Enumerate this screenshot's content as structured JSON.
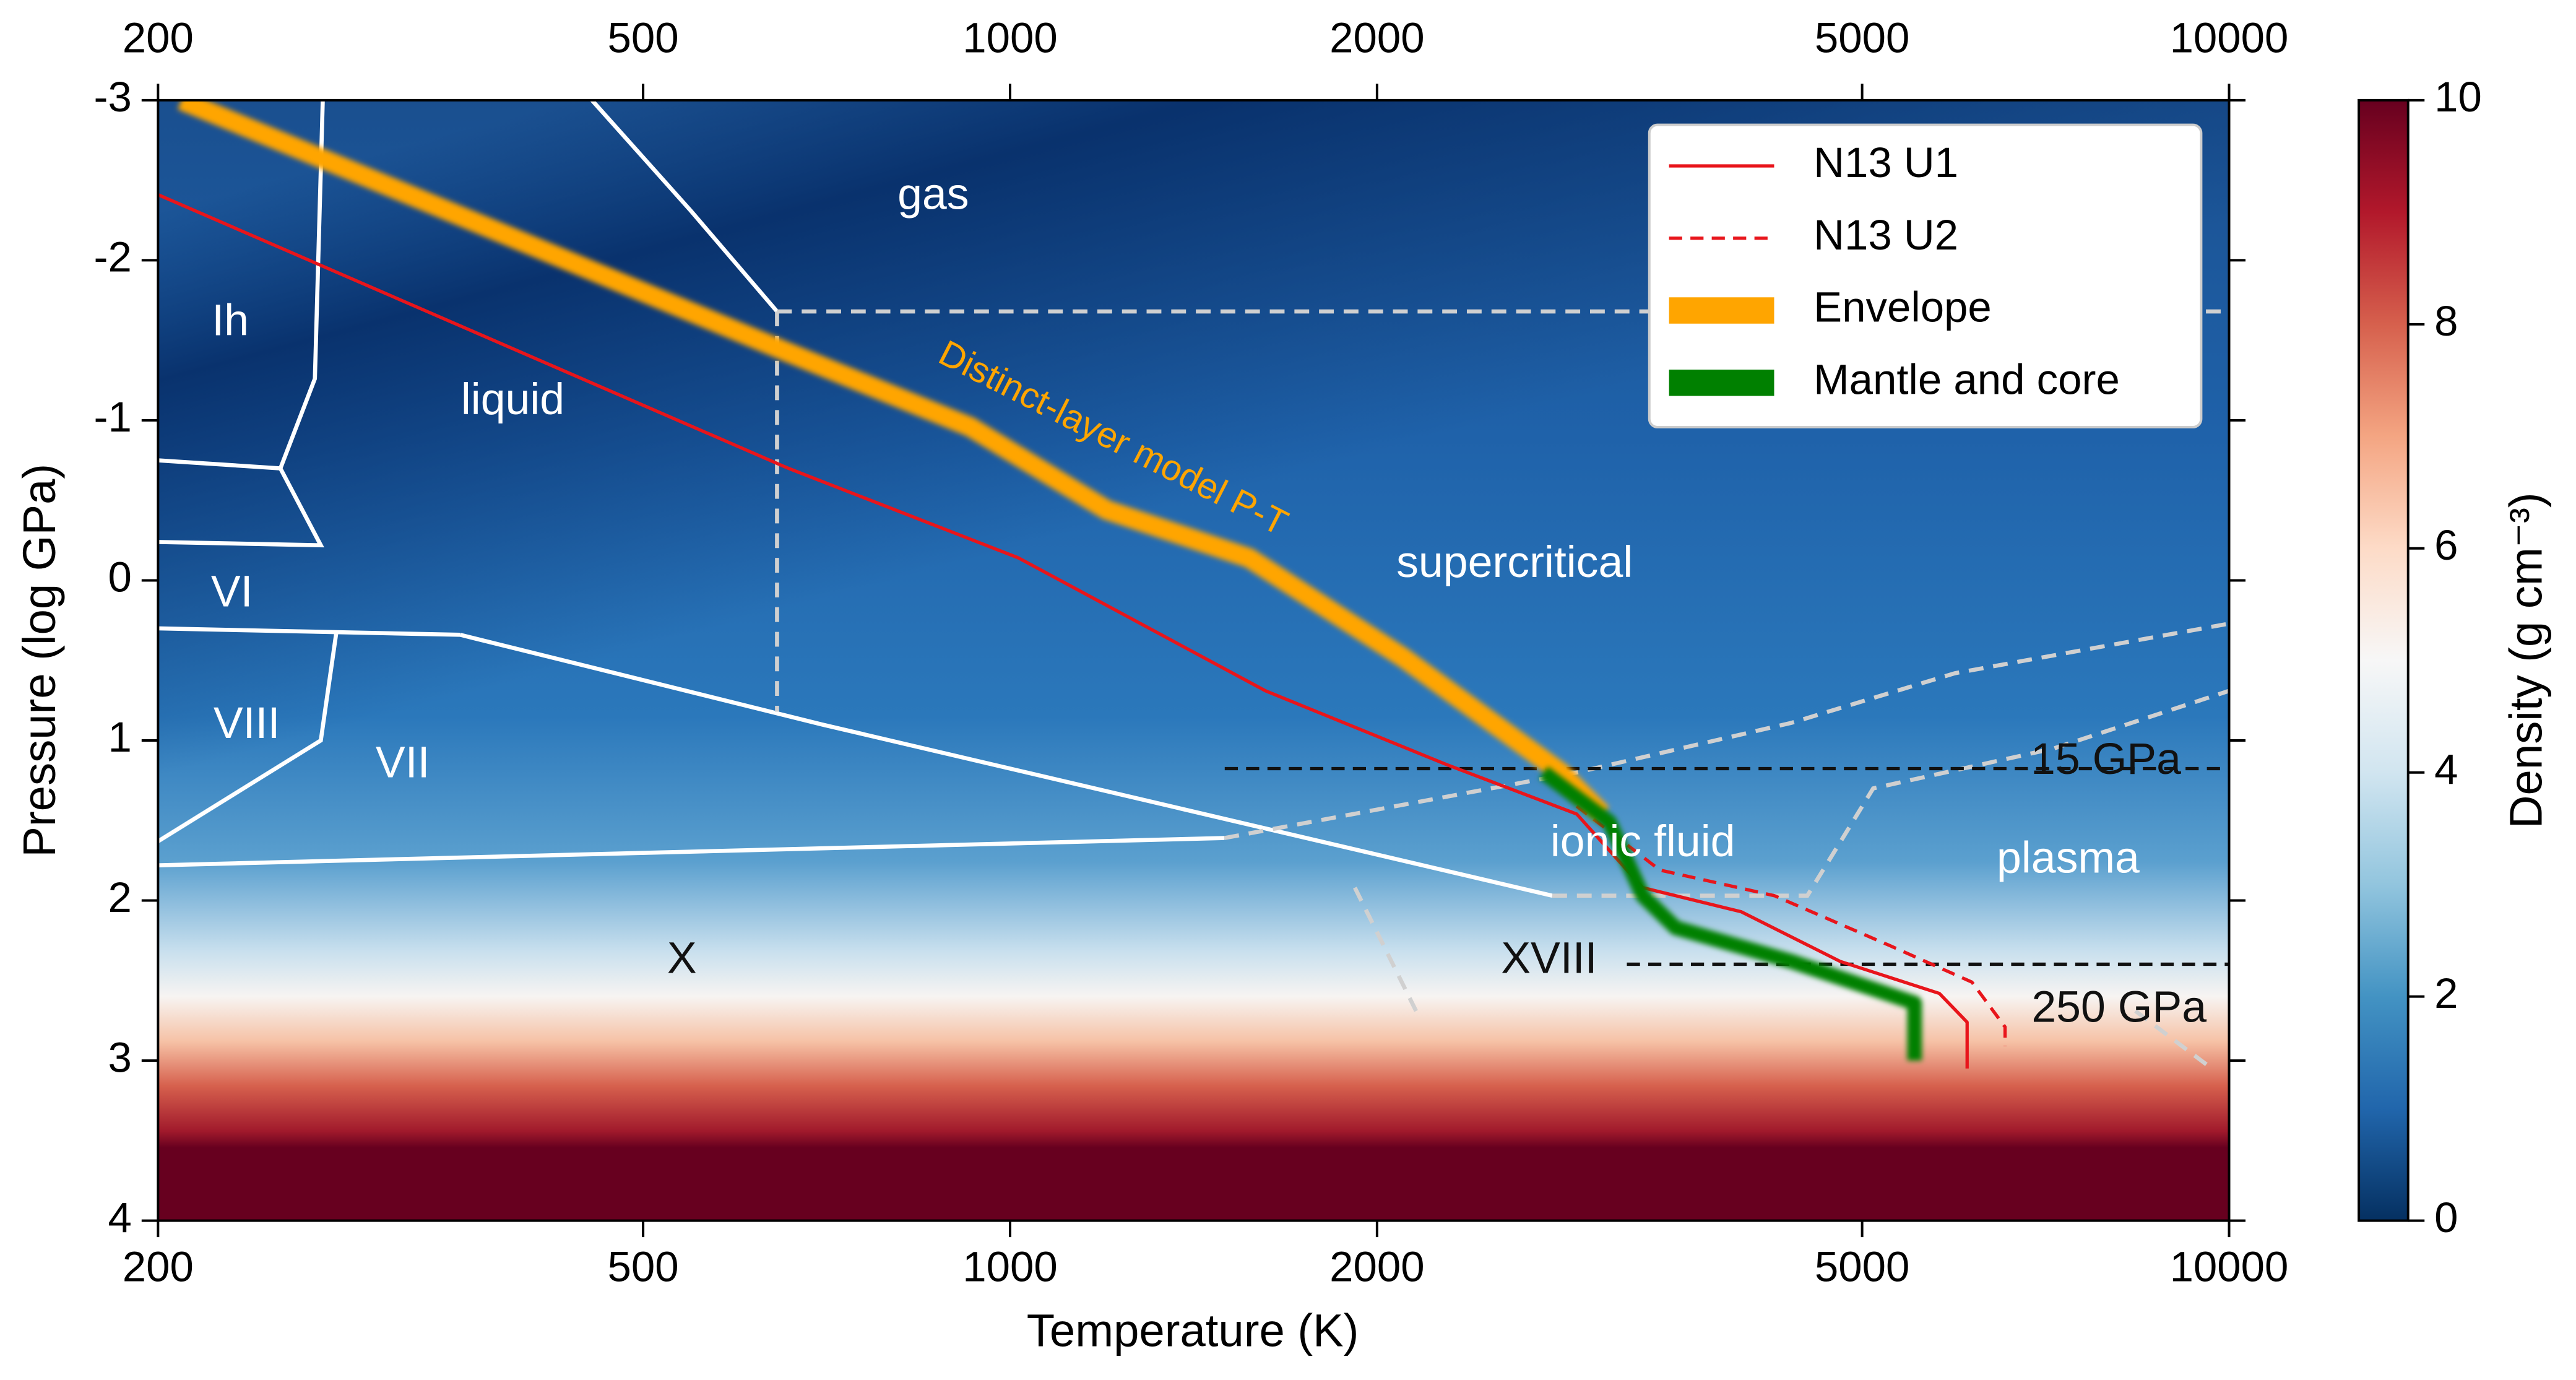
{
  "chart_data": {
    "type": "line",
    "xlabel": "Temperature (K)",
    "ylabel": "Pressure (log GPa)",
    "xscale": "log",
    "xlim": [
      200,
      10000
    ],
    "xticks": [
      200,
      500,
      1000,
      2000,
      5000,
      10000
    ],
    "ylim": [
      -3,
      4
    ],
    "invert_y": true,
    "yticks": [
      -3,
      -2,
      -1,
      0,
      1,
      2,
      3,
      4
    ],
    "legend": "upper right",
    "colorbar": {
      "label": "Density (g cm⁻³)",
      "clim": [
        0,
        10
      ],
      "ticks": [
        0,
        2,
        4,
        6,
        8,
        10
      ]
    },
    "series": [
      {
        "name": "N13 U1",
        "color": "#e8151b",
        "dash": false,
        "x": [
          200,
          658,
          1016,
          1620,
          2279,
          2916,
          3304,
          3980,
          4797,
          5785,
          6096,
          6096
        ],
        "values": [
          -2.41,
          -0.7,
          -0.14,
          0.69,
          1.15,
          1.46,
          1.92,
          2.07,
          2.38,
          2.58,
          2.76,
          3.05
        ]
      },
      {
        "name": "N13 U2",
        "color": "#e8151b",
        "dash": true,
        "x": [
          2916,
          3412,
          4236,
          5262,
          6151,
          6549,
          6549
        ],
        "values": [
          1.41,
          1.81,
          1.97,
          2.28,
          2.51,
          2.79,
          2.91
        ]
      },
      {
        "name": "Envelope",
        "color": "#ffa500",
        "dash": false,
        "x": [
          209,
          377,
          650,
          927,
          1200,
          1570,
          2100,
          2830,
          3060
        ],
        "values": [
          -3,
          -2.19,
          -1.44,
          -0.96,
          -0.44,
          -0.14,
          0.48,
          1.2,
          1.46
        ]
      },
      {
        "name": "Mantle and core",
        "color": "#008000",
        "dash": false,
        "x": [
          2739,
          3102,
          3304,
          3515,
          4375,
          5521,
          5521
        ],
        "values": [
          1.2,
          1.51,
          1.97,
          2.17,
          2.38,
          2.64,
          3.0
        ]
      }
    ],
    "boundaries": [
      {
        "color": "#ffffff",
        "dash": false,
        "x": [
          454,
          547,
          644
        ],
        "values": [
          -3,
          -2.31,
          -1.68
        ]
      },
      {
        "color": "#ffffff",
        "dash": false,
        "x": [
          273,
          269,
          252,
          200
        ],
        "values": [
          -3,
          -1.26,
          -0.7,
          -0.75
        ]
      },
      {
        "color": "#ffffff",
        "dash": false,
        "x": [
          252,
          272,
          200
        ],
        "values": [
          -0.7,
          -0.22,
          -0.24
        ]
      },
      {
        "color": "#ffffff",
        "dash": false,
        "x": [
          200,
          354
        ],
        "values": [
          0.3,
          0.34
        ]
      },
      {
        "color": "#ffffff",
        "dash": false,
        "x": [
          354,
          701,
          2785
        ],
        "values": [
          0.34,
          0.9,
          1.97
        ]
      },
      {
        "color": "#ffffff",
        "dash": false,
        "x": [
          200,
          1499
        ],
        "values": [
          1.78,
          1.61
        ]
      },
      {
        "color": "#ffffff",
        "dash": false,
        "x": [
          280,
          272,
          200
        ],
        "values": [
          0.33,
          1.0,
          1.63
        ]
      },
      {
        "color": "#d0d0d0",
        "dash": true,
        "x": [
          644,
          10000
        ],
        "values": [
          -1.68,
          -1.68
        ]
      },
      {
        "color": "#d0d0d0",
        "dash": true,
        "x": [
          644,
          644
        ],
        "values": [
          -1.68,
          0.82
        ]
      },
      {
        "color": "#d0d0d0",
        "dash": true,
        "x": [
          1499,
          2916,
          4375,
          5957,
          10000
        ],
        "values": [
          1.61,
          1.2,
          0.89,
          0.58,
          0.27
        ]
      },
      {
        "color": "#d0d0d0",
        "dash": true,
        "x": [
          2785,
          4508,
          5105,
          7180,
          10000
        ],
        "values": [
          1.97,
          1.97,
          1.3,
          1.05,
          0.69
        ]
      },
      {
        "color": "#d0d0d0",
        "dash": true,
        "x": [
          1918,
          2153
        ],
        "values": [
          1.92,
          2.69
        ]
      },
      {
        "color": "#d0d0d0",
        "dash": true,
        "x": [
          8380,
          9680
        ],
        "values": [
          2.69,
          3.05
        ]
      }
    ],
    "reference_lines": [
      {
        "label": "15 GPa",
        "value": 1.176,
        "x": [
          1500,
          10000
        ]
      },
      {
        "label": "250 GPa",
        "value": 2.398,
        "x": [
          3206,
          10000
        ]
      }
    ],
    "annotations": [
      "gas",
      "Ih",
      "liquid",
      "VI",
      "VIII",
      "VII",
      "X",
      "XVIII",
      "supercritical",
      "ionic fluid",
      "plasma",
      "Distinct-layer model P-T"
    ]
  }
}
